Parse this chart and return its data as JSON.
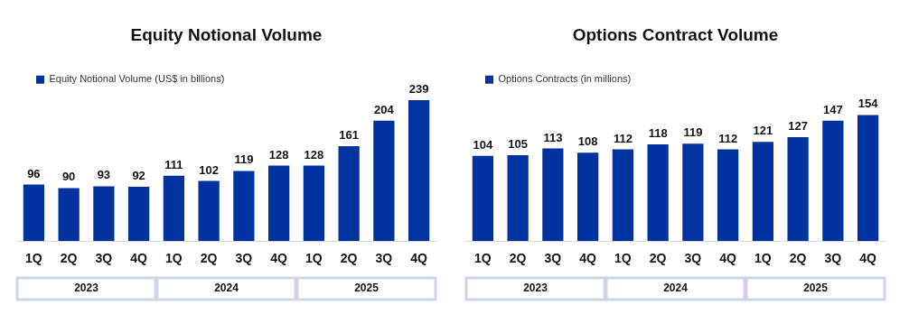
{
  "chart_data": [
    {
      "type": "bar",
      "title": "Equity Notional Volume",
      "categories": [
        "1Q",
        "2Q",
        "3Q",
        "4Q",
        "1Q",
        "2Q",
        "3Q",
        "4Q",
        "1Q",
        "2Q",
        "3Q",
        "4Q"
      ],
      "series": [
        {
          "name": "Equity Notional Volume (US$ in billions)",
          "color": "#0033a0",
          "values": [
            96,
            90,
            93,
            92,
            111,
            102,
            119,
            128,
            128,
            161,
            204,
            239
          ]
        }
      ],
      "data_labels": true,
      "legend": "top left",
      "grid": false,
      "annotations": [
        "2023",
        "2024",
        "2025"
      ]
    },
    {
      "type": "bar",
      "title": "Options Contract Volume",
      "categories": [
        "1Q",
        "2Q",
        "3Q",
        "4Q",
        "1Q",
        "2Q",
        "3Q",
        "4Q",
        "1Q",
        "2Q",
        "3Q",
        "4Q"
      ],
      "series": [
        {
          "name": "Options Contracts (in millions)",
          "color": "#0033a0",
          "values": [
            104,
            105,
            113,
            108,
            112,
            118,
            119,
            112,
            121,
            127,
            147,
            154
          ]
        }
      ],
      "data_labels": true,
      "legend": "top left",
      "grid": false,
      "annotations": [
        "2023",
        "2024",
        "2025"
      ]
    }
  ]
}
